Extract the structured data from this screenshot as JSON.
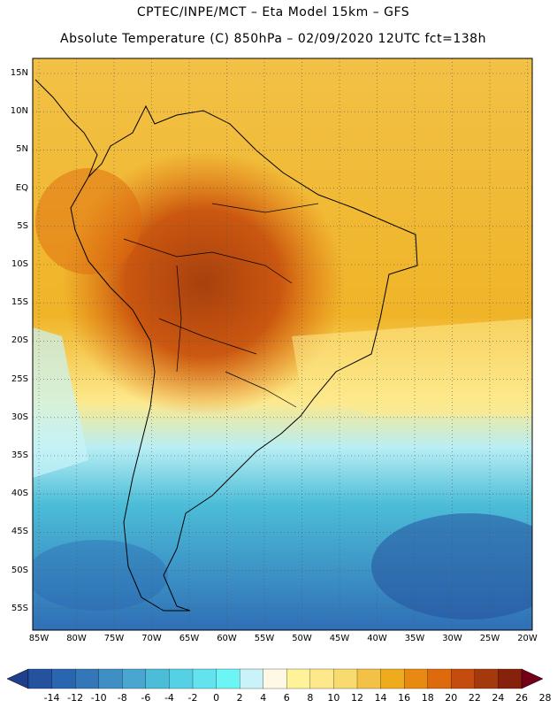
{
  "header": {
    "line1": "CPTEC/INPE/MCT –  Eta Model 15km – GFS",
    "line2": "Absolute Temperature (C) 850hPa – 02/09/2020 12UTC fct=138h"
  },
  "map": {
    "lat_labels": [
      "15N",
      "10N",
      "5N",
      "EQ",
      "5S",
      "10S",
      "15S",
      "20S",
      "25S",
      "30S",
      "35S",
      "40S",
      "45S",
      "50S",
      "55S"
    ],
    "lon_labels": [
      "85W",
      "80W",
      "75W",
      "70W",
      "65W",
      "60W",
      "55W",
      "50W",
      "45W",
      "40W",
      "35W",
      "30W",
      "25W",
      "20W"
    ]
  },
  "colorbar": {
    "labels": [
      "-14",
      "-12",
      "-10",
      "-8",
      "-6",
      "-4",
      "-2",
      "0",
      "2",
      "4",
      "6",
      "8",
      "10",
      "12",
      "14",
      "16",
      "18",
      "20",
      "22",
      "24",
      "26",
      "28"
    ],
    "colors": [
      "#1f3f8c",
      "#24529e",
      "#2a66b0",
      "#3477b8",
      "#3f8fc4",
      "#48a6d0",
      "#4cbdd8",
      "#55d0e4",
      "#63e3ee",
      "#6cf5f5",
      "#c9f3f8",
      "#fff8e6",
      "#fff39a",
      "#fde98c",
      "#f8db6e",
      "#f2c146",
      "#eeab1e",
      "#e88a12",
      "#de6a0e",
      "#c44c0c",
      "#a43a0c",
      "#86220c",
      "#740018"
    ]
  }
}
